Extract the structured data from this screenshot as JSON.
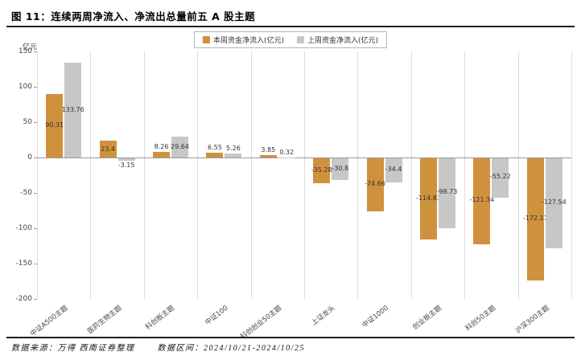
{
  "title": "图 11：连续两周净流入、净流出总量前五 A 股主题",
  "footer": {
    "source": "数据来源：万得  西南证券整理",
    "range": "数据区间：2024/10/21-2024/10/25"
  },
  "chart_data": {
    "type": "bar",
    "title": "连续两周净流入、净流出总量前五 A 股主题",
    "xlabel": "",
    "ylabel": "亿元",
    "ylim": [
      -200,
      150
    ],
    "yticks": [
      150,
      100,
      50,
      0,
      -50,
      -100,
      -150,
      -200
    ],
    "grid": "vertical-separators",
    "legend_position": "top-center",
    "categories": [
      "中证A500主题",
      "医药生物主题",
      "科创板主题",
      "中证100",
      "科创创业50主题",
      "上证龙头",
      "中证1000",
      "创业板主题",
      "科创50主题",
      "沪深300主题"
    ],
    "series": [
      {
        "name": "本周资金净流入(亿元)",
        "color": "#D0913D",
        "values": [
          90.31,
          23.4,
          8.26,
          6.55,
          3.85,
          -35.28,
          -74.66,
          -114.83,
          -121.34,
          -172.17
        ]
      },
      {
        "name": "上周资金净流入(亿元)",
        "color": "#C7C7C7",
        "values": [
          133.76,
          -3.15,
          29.64,
          5.26,
          0.32,
          -30.8,
          -34.4,
          -98.73,
          -55.22,
          -127.54
        ]
      }
    ]
  }
}
